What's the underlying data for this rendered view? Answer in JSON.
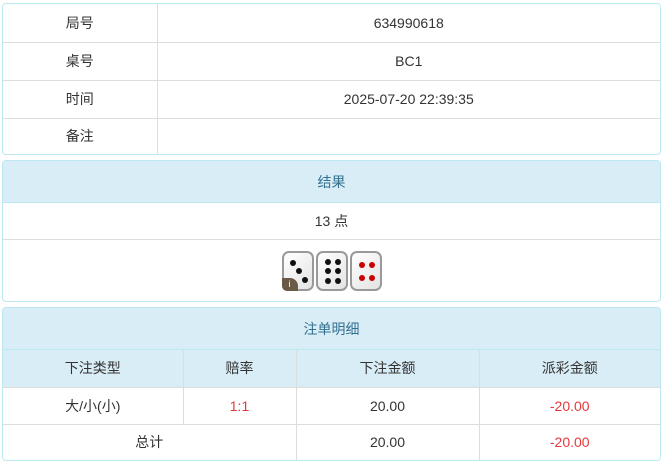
{
  "info": {
    "rows": [
      {
        "label": "局号",
        "value": "634990618"
      },
      {
        "label": "桌号",
        "value": "BC1"
      },
      {
        "label": "时间",
        "value": "2025-07-20 22:39:35"
      },
      {
        "label": "备注",
        "value": ""
      }
    ]
  },
  "result": {
    "title": "结果",
    "points": "13 点",
    "dice": [
      3,
      6,
      4
    ],
    "info_badge": "i"
  },
  "bets": {
    "title": "注单明细",
    "headers": [
      "下注类型",
      "赔率",
      "下注金额",
      "派彩金额"
    ],
    "rows": [
      {
        "type": "大/小(小)",
        "odds": "1:1",
        "amount": "20.00",
        "payout": "-20.00"
      }
    ],
    "total": {
      "label": "总计",
      "amount": "20.00",
      "payout": "-20.00"
    }
  },
  "colors": {
    "header_bg": "#d9edf7",
    "header_text": "#31708f",
    "negative": "#e4393c"
  }
}
